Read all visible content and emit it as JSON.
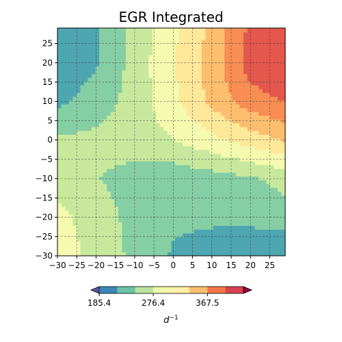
{
  "chart_data": {
    "type": "heatmap",
    "subtype": "filled-contour",
    "title": "EGR Integrated",
    "xlabel": "",
    "ylabel": "",
    "xlim": [
      -30,
      29
    ],
    "ylim": [
      -30,
      29
    ],
    "x_ticks": [
      -30,
      -25,
      -20,
      -15,
      -10,
      -5,
      0,
      5,
      10,
      15,
      20,
      25
    ],
    "y_ticks": [
      -30,
      -25,
      -20,
      -15,
      -10,
      -5,
      0,
      5,
      10,
      15,
      20,
      25
    ],
    "x_tick_labels": [
      "−30",
      "−25",
      "−20",
      "−15",
      "−10",
      "−5",
      "0",
      "5",
      "10",
      "15",
      "20",
      "25"
    ],
    "y_tick_labels": [
      "−30",
      "−25",
      "−20",
      "−15",
      "−10",
      "−5",
      "0",
      "5",
      "10",
      "15",
      "20",
      "25"
    ],
    "grid": true,
    "grid_style": "dashed",
    "colormap": "Spectral_r",
    "levels": [
      185.4,
      215.7,
      246.1,
      276.4,
      306.8,
      337.1,
      367.5,
      397.8,
      428.2
    ],
    "level_colors": [
      "#5e4fa2",
      "#3a88b5",
      "#6ac3a5",
      "#bbe4a0",
      "#f0f9aa",
      "#fff0a6",
      "#fdbe6f",
      "#f57547",
      "#d5434f",
      "#9e0142"
    ],
    "fill_colors": [
      "#4f61ae",
      "#4ea6b1",
      "#86cfa5",
      "#c8e99d",
      "#f4faaf",
      "#fee89a",
      "#fcbe6f",
      "#f88e53",
      "#e3574c",
      "#b91e48"
    ],
    "extend": "both",
    "colorbar": {
      "orientation": "horizontal",
      "tick_values": [
        185.4,
        276.4,
        367.5
      ],
      "tick_labels": [
        "185.4",
        "276.4",
        "367.5"
      ],
      "label": "d^-1",
      "label_base": "d",
      "label_sup": "−1"
    },
    "field_grid": {
      "x": [
        -30,
        -20,
        -10,
        0,
        10,
        20,
        29
      ],
      "y": [
        29,
        20,
        10,
        0,
        -10,
        -20,
        -30
      ],
      "values": [
        [
          196,
          210,
          255,
          300,
          345,
          405,
          418
        ],
        [
          196,
          212,
          258,
          305,
          350,
          412,
          428
        ],
        [
          208,
          230,
          258,
          300,
          345,
          385,
          398
        ],
        [
          250,
          255,
          262,
          275,
          298,
          320,
          340
        ],
        [
          262,
          248,
          232,
          226,
          232,
          242,
          256
        ],
        [
          286,
          262,
          236,
          222,
          222,
          225,
          232
        ],
        [
          292,
          268,
          238,
          212,
          198,
          188,
          186
        ]
      ]
    }
  }
}
